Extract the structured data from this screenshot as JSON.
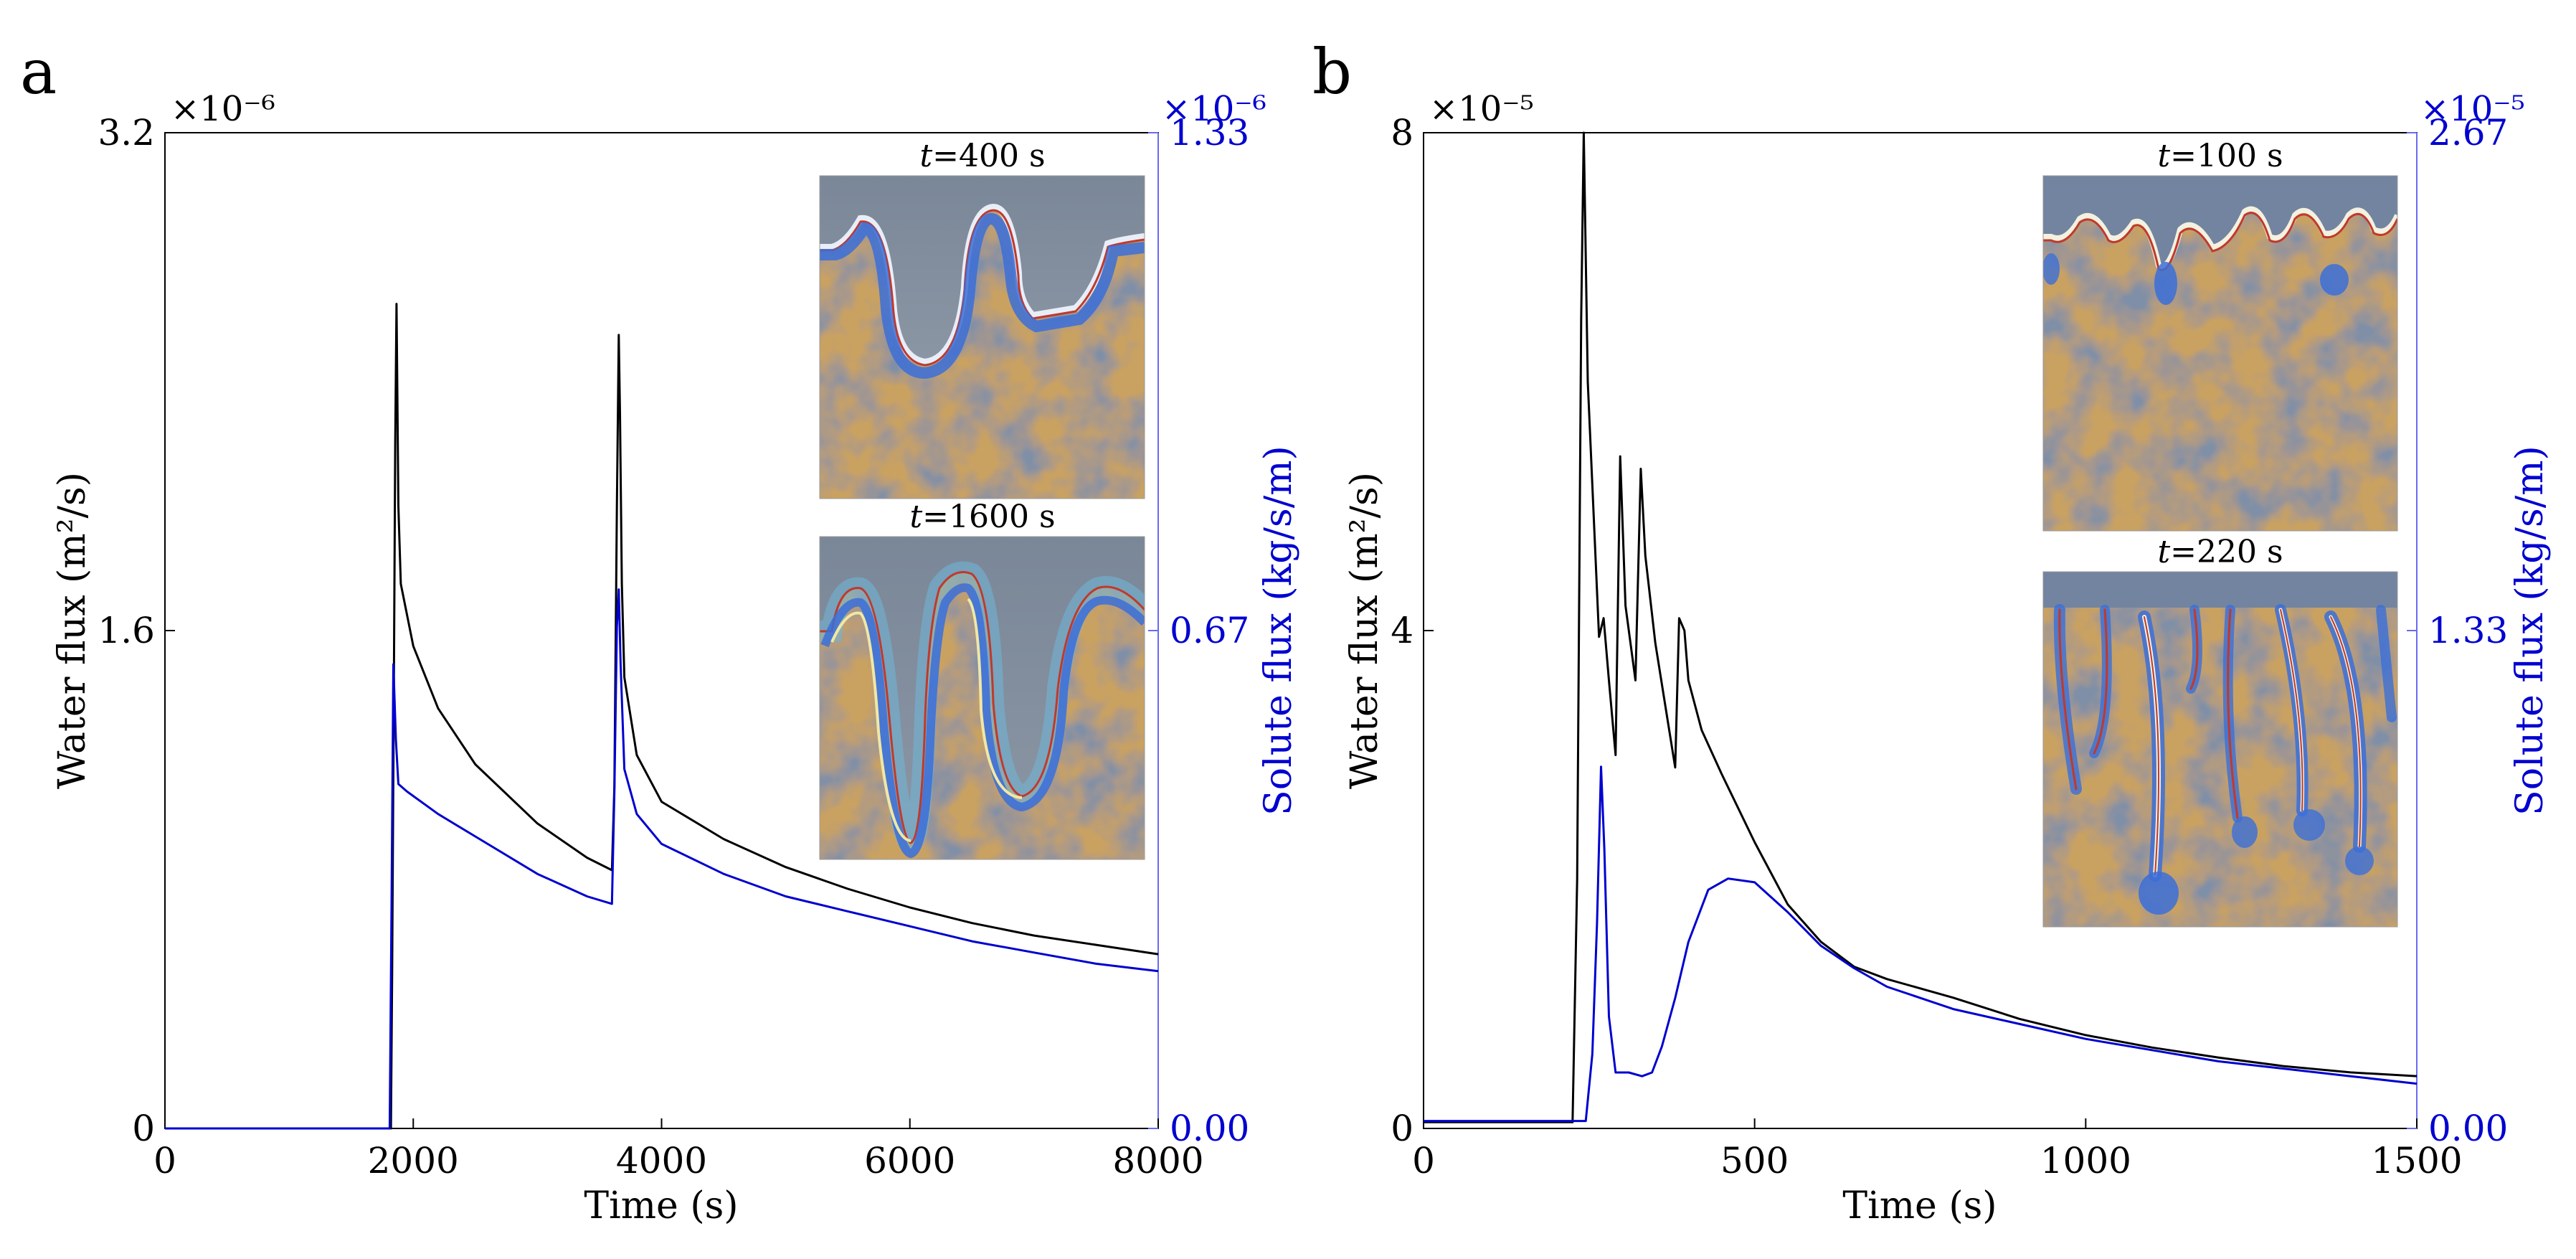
{
  "chart_data": [
    {
      "panel_label": "a",
      "type": "line",
      "xlabel": "Time (s)",
      "ylabel_left": "Water flux (m²/s)",
      "ylabel_right": "Solute flux (kg/s/m)",
      "left_multiplier": "×10⁻⁶",
      "right_multiplier": "×10⁻⁶",
      "xlim": [
        0,
        8000
      ],
      "ylim_left": [
        0,
        3.2
      ],
      "ylim_right": [
        0,
        1.33
      ],
      "x_ticks": [
        "0",
        "2000",
        "4000",
        "6000",
        "8000"
      ],
      "y_ticks_left": [
        "0",
        "1.6",
        "3.2"
      ],
      "y_ticks_right": [
        "0.00",
        "0.67",
        "1.33"
      ],
      "series": [
        {
          "axis": "left",
          "color": "#000000",
          "points": [
            [
              0,
              0
            ],
            [
              1820,
              0
            ],
            [
              1830,
              0.5
            ],
            [
              1845,
              1.5
            ],
            [
              1855,
              2.2
            ],
            [
              1865,
              2.65
            ],
            [
              1880,
              2.0
            ],
            [
              1900,
              1.75
            ],
            [
              2000,
              1.55
            ],
            [
              2200,
              1.35
            ],
            [
              2500,
              1.17
            ],
            [
              3000,
              0.98
            ],
            [
              3400,
              0.87
            ],
            [
              3600,
              0.83
            ],
            [
              3620,
              1.1
            ],
            [
              3640,
              2.0
            ],
            [
              3655,
              2.55
            ],
            [
              3665,
              2.3
            ],
            [
              3680,
              1.75
            ],
            [
              3700,
              1.45
            ],
            [
              3800,
              1.2
            ],
            [
              4000,
              1.05
            ],
            [
              4500,
              0.93
            ],
            [
              5000,
              0.84
            ],
            [
              5500,
              0.77
            ],
            [
              6000,
              0.71
            ],
            [
              6500,
              0.66
            ],
            [
              7000,
              0.62
            ],
            [
              7500,
              0.59
            ],
            [
              8000,
              0.56
            ]
          ]
        },
        {
          "axis": "right",
          "color": "#0000d0",
          "points": [
            [
              0,
              0
            ],
            [
              1810,
              0
            ],
            [
              1825,
              0.3
            ],
            [
              1840,
              0.62
            ],
            [
              1860,
              0.52
            ],
            [
              1880,
              0.46
            ],
            [
              1950,
              0.45
            ],
            [
              2200,
              0.42
            ],
            [
              2500,
              0.39
            ],
            [
              3000,
              0.34
            ],
            [
              3400,
              0.31
            ],
            [
              3600,
              0.3
            ],
            [
              3620,
              0.45
            ],
            [
              3640,
              0.67
            ],
            [
              3655,
              0.72
            ],
            [
              3670,
              0.62
            ],
            [
              3700,
              0.48
            ],
            [
              3800,
              0.42
            ],
            [
              4000,
              0.38
            ],
            [
              4500,
              0.34
            ],
            [
              5000,
              0.31
            ],
            [
              5500,
              0.29
            ],
            [
              6000,
              0.27
            ],
            [
              6500,
              0.25
            ],
            [
              7000,
              0.235
            ],
            [
              7500,
              0.22
            ],
            [
              8000,
              0.21
            ]
          ]
        }
      ],
      "insets": [
        {
          "label_italic": "t",
          "label_rest": "=400 s"
        },
        {
          "label_italic": "t",
          "label_rest": "=1600 s"
        }
      ]
    },
    {
      "panel_label": "b",
      "type": "line",
      "xlabel": "Time (s)",
      "ylabel_left": "Water flux (m²/s)",
      "ylabel_right": "Solute flux (kg/s/m)",
      "left_multiplier": "×10⁻⁵",
      "right_multiplier": "×10⁻⁵",
      "xlim": [
        0,
        1500
      ],
      "ylim_left": [
        0,
        8
      ],
      "ylim_right": [
        0,
        2.67
      ],
      "x_ticks": [
        "0",
        "500",
        "1000",
        "1500"
      ],
      "y_ticks_left": [
        "0",
        "4",
        "8"
      ],
      "y_ticks_right": [
        "0.00",
        "1.33",
        "2.67"
      ],
      "series": [
        {
          "axis": "left",
          "color": "#000000",
          "points": [
            [
              0,
              0.05
            ],
            [
              225,
              0.05
            ],
            [
              232,
              2.0
            ],
            [
              238,
              6.5
            ],
            [
              242,
              8.0
            ],
            [
              248,
              6.0
            ],
            [
              258,
              4.8
            ],
            [
              265,
              3.95
            ],
            [
              272,
              4.1
            ],
            [
              280,
              3.6
            ],
            [
              290,
              3.0
            ],
            [
              297,
              5.4
            ],
            [
              305,
              4.2
            ],
            [
              320,
              3.6
            ],
            [
              328,
              5.3
            ],
            [
              335,
              4.6
            ],
            [
              350,
              3.9
            ],
            [
              368,
              3.3
            ],
            [
              380,
              2.9
            ],
            [
              386,
              4.1
            ],
            [
              394,
              4.0
            ],
            [
              400,
              3.6
            ],
            [
              420,
              3.2
            ],
            [
              450,
              2.85
            ],
            [
              500,
              2.3
            ],
            [
              550,
              1.8
            ],
            [
              600,
              1.5
            ],
            [
              650,
              1.3
            ],
            [
              700,
              1.2
            ],
            [
              800,
              1.05
            ],
            [
              900,
              0.88
            ],
            [
              1000,
              0.75
            ],
            [
              1100,
              0.65
            ],
            [
              1200,
              0.57
            ],
            [
              1300,
              0.5
            ],
            [
              1400,
              0.45
            ],
            [
              1500,
              0.42
            ]
          ]
        },
        {
          "axis": "right",
          "color": "#0000d0",
          "points": [
            [
              0,
              0.02
            ],
            [
              245,
              0.02
            ],
            [
              255,
              0.2
            ],
            [
              262,
              0.55
            ],
            [
              268,
              0.97
            ],
            [
              273,
              0.75
            ],
            [
              280,
              0.3
            ],
            [
              290,
              0.15
            ],
            [
              310,
              0.15
            ],
            [
              330,
              0.14
            ],
            [
              345,
              0.15
            ],
            [
              360,
              0.22
            ],
            [
              380,
              0.35
            ],
            [
              400,
              0.5
            ],
            [
              430,
              0.64
            ],
            [
              460,
              0.67
            ],
            [
              500,
              0.66
            ],
            [
              550,
              0.58
            ],
            [
              600,
              0.49
            ],
            [
              650,
              0.43
            ],
            [
              700,
              0.38
            ],
            [
              800,
              0.32
            ],
            [
              900,
              0.28
            ],
            [
              1000,
              0.24
            ],
            [
              1100,
              0.21
            ],
            [
              1200,
              0.18
            ],
            [
              1300,
              0.16
            ],
            [
              1400,
              0.14
            ],
            [
              1500,
              0.12
            ]
          ]
        }
      ],
      "insets": [
        {
          "label_italic": "t",
          "label_rest": "=100 s"
        },
        {
          "label_italic": "t",
          "label_rest": "=220 s"
        }
      ]
    }
  ]
}
